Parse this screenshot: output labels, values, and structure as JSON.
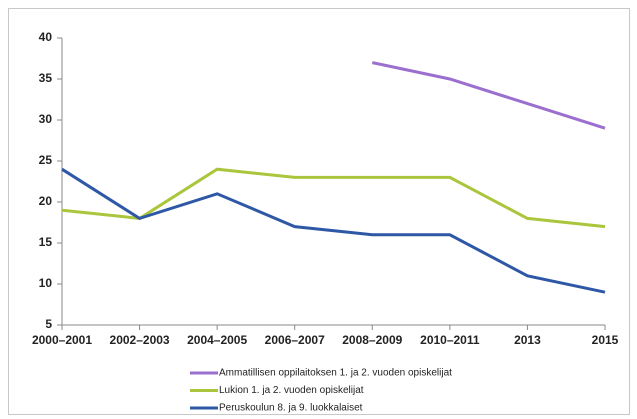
{
  "chart_data": {
    "type": "line",
    "categories": [
      "2000–2001",
      "2002–2003",
      "2004–2005",
      "2006–2007",
      "2008–2009",
      "2010–2011",
      "2013",
      "2015"
    ],
    "series": [
      {
        "name": "Ammatillisen oppilaitoksen 1. ja 2. vuoden opiskelijat",
        "color": "#9b6fcf",
        "values": [
          null,
          null,
          null,
          null,
          37,
          35,
          32,
          29
        ]
      },
      {
        "name": "Lukion 1. ja 2. vuoden opiskelijat",
        "color": "#a9c63c",
        "values": [
          19,
          18,
          24,
          23,
          23,
          23,
          18,
          17
        ]
      },
      {
        "name": "Peruskoulun 8. ja 9. luokkalaiset",
        "color": "#2e58a6",
        "values": [
          24,
          18,
          21,
          17,
          16,
          16,
          11,
          9
        ]
      }
    ],
    "ylim": [
      5,
      40
    ],
    "yticks": [
      5,
      10,
      15,
      20,
      25,
      30,
      35,
      40
    ],
    "grid": false
  }
}
